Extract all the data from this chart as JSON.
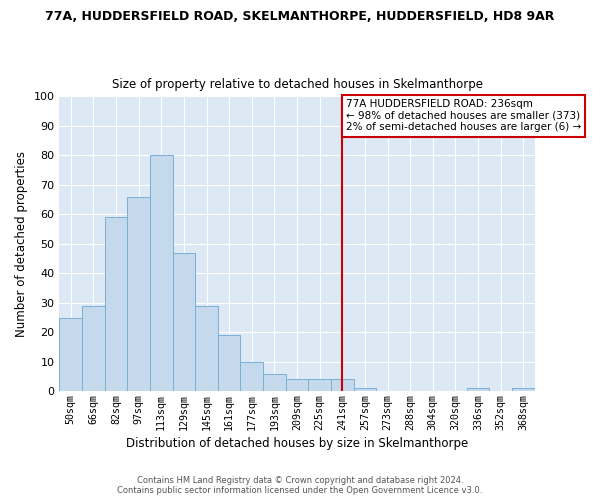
{
  "title1": "77A, HUDDERSFIELD ROAD, SKELMANTHORPE, HUDDERSFIELD, HD8 9AR",
  "title2": "Size of property relative to detached houses in Skelmanthorpe",
  "xlabel": "Distribution of detached houses by size in Skelmanthorpe",
  "ylabel": "Number of detached properties",
  "bar_labels": [
    "50sqm",
    "66sqm",
    "82sqm",
    "97sqm",
    "113sqm",
    "129sqm",
    "145sqm",
    "161sqm",
    "177sqm",
    "193sqm",
    "209sqm",
    "225sqm",
    "241sqm",
    "257sqm",
    "273sqm",
    "288sqm",
    "304sqm",
    "320sqm",
    "336sqm",
    "352sqm",
    "368sqm"
  ],
  "bar_heights": [
    25,
    29,
    59,
    66,
    80,
    47,
    29,
    19,
    10,
    6,
    4,
    4,
    4,
    1,
    0,
    0,
    0,
    0,
    1,
    0,
    1
  ],
  "bar_color": "#c5d9ed",
  "bar_edge_color": "#7aafd4",
  "vline_x_index": 12,
  "vline_color": "#cc0000",
  "annotation_title": "77A HUDDERSFIELD ROAD: 236sqm",
  "annotation_line1": "← 98% of detached houses are smaller (373)",
  "annotation_line2": "2% of semi-detached houses are larger (6) →",
  "annotation_box_color": "#ffffff",
  "annotation_box_edge": "#cc0000",
  "ylim": [
    0,
    100
  ],
  "yticks": [
    0,
    10,
    20,
    30,
    40,
    50,
    60,
    70,
    80,
    90,
    100
  ],
  "bg_color": "#dce9f5",
  "grid_color": "#ffffff",
  "footer1": "Contains HM Land Registry data © Crown copyright and database right 2024.",
  "footer2": "Contains public sector information licensed under the Open Government Licence v3.0."
}
